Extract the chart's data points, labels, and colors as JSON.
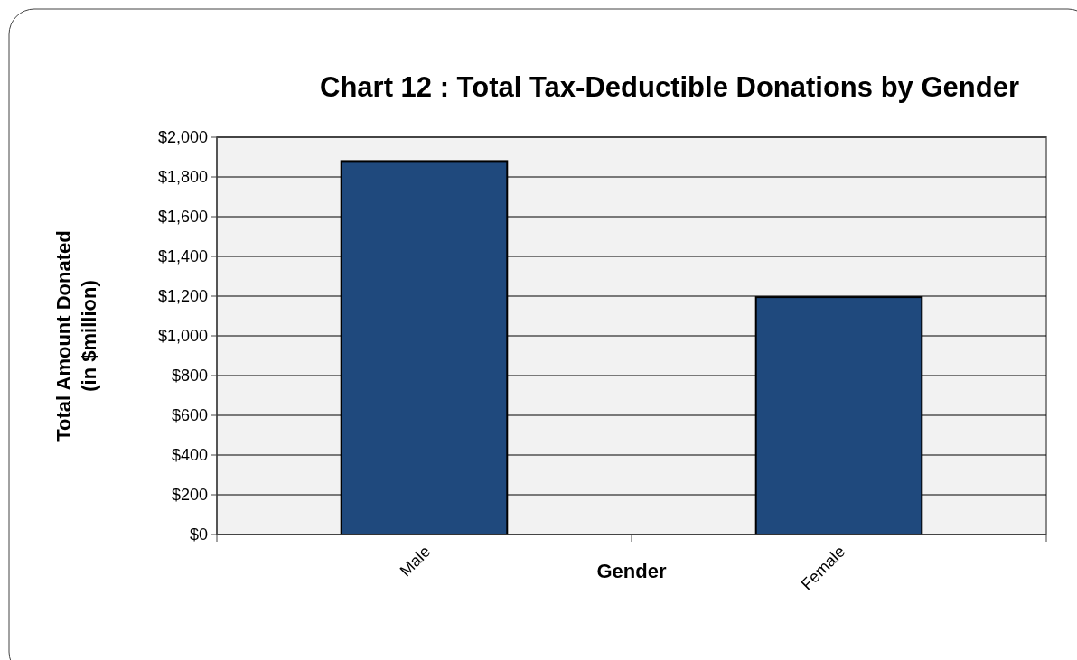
{
  "chart_data": {
    "type": "bar",
    "title": "Chart 12 : Total Tax-Deductible Donations by Gender",
    "xlabel": "Gender",
    "ylabel": "Total Amount Donated\n(in $million)",
    "categories": [
      "Male",
      "Female"
    ],
    "values": [
      1880,
      1195
    ],
    "color": "#1f497d",
    "ylim": [
      0,
      2000
    ],
    "yticks": [
      {
        "value": 0,
        "label": "$0"
      },
      {
        "value": 200,
        "label": "$200"
      },
      {
        "value": 400,
        "label": "$400"
      },
      {
        "value": 600,
        "label": "$600"
      },
      {
        "value": 800,
        "label": "$800"
      },
      {
        "value": 1000,
        "label": "$1,000"
      },
      {
        "value": 1200,
        "label": "$1,200"
      },
      {
        "value": 1400,
        "label": "$1,400"
      },
      {
        "value": 1600,
        "label": "$1,600"
      },
      {
        "value": 1800,
        "label": "$1,800"
      },
      {
        "value": 2000,
        "label": "$2,000"
      }
    ],
    "grid": "y"
  }
}
